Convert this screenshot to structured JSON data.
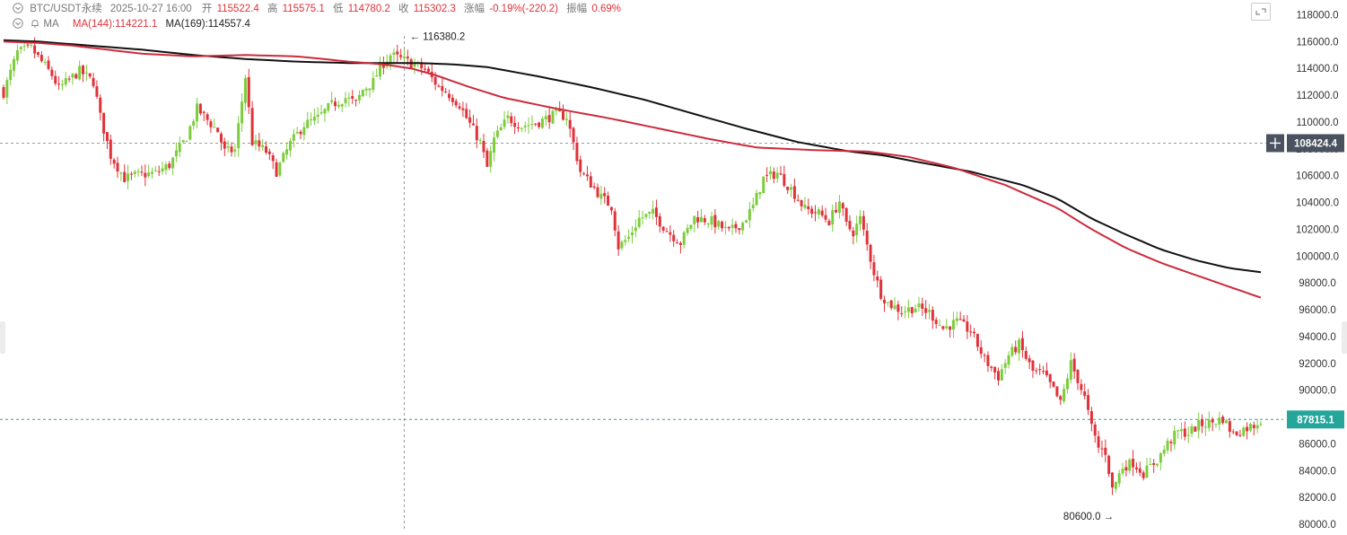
{
  "header": {
    "symbol": "BTC/USDT永续",
    "datetime": "2025-10-27 16:00",
    "open_label": "开",
    "open": "115522.4",
    "high_label": "高",
    "high": "115575.1",
    "low_label": "低",
    "low": "114780.2",
    "close_label": "收",
    "close": "115302.3",
    "change_label": "涨幅",
    "change": "-0.19%(-220.2)",
    "amplitude_label": "振幅",
    "amplitude": "0.69%"
  },
  "indicator": {
    "name": "MA",
    "ma144": "MA(144):114221.1",
    "ma169": "MA(169):114557.4"
  },
  "colors": {
    "up": "#7ccd3c",
    "down": "#e0323a",
    "ma144": "#cc2b3b",
    "ma169": "#111111",
    "last_price_bg": "#26a69a",
    "crosshair_price_bg": "#4a5260"
  },
  "chart_data": {
    "type": "candlestick",
    "y_range": [
      79600,
      118700
    ],
    "y_ticks": [
      80000,
      82000,
      84000,
      86000,
      88000,
      90000,
      92000,
      94000,
      96000,
      98000,
      100000,
      102000,
      104000,
      106000,
      108000,
      110000,
      112000,
      114000,
      116000,
      118000
    ],
    "y_tick_labels": [
      "80000.0",
      "82000.0",
      "84000.0",
      "86000.0",
      "88000.0",
      "90000.0",
      "92000.0",
      "94000.0",
      "96000.0",
      "98000.0",
      "100000.0",
      "102000.0",
      "104000.0",
      "106000.0",
      "108000.0",
      "110000.0",
      "112000.0",
      "114000.0",
      "116000.0",
      "118000.0"
    ],
    "close_path": [
      [
        0,
        112200
      ],
      [
        4,
        115200
      ],
      [
        8,
        115500
      ],
      [
        14,
        113500
      ],
      [
        16,
        112500
      ],
      [
        22,
        113800
      ],
      [
        26,
        113000
      ],
      [
        28,
        110400
      ],
      [
        31,
        107500
      ],
      [
        35,
        105800
      ],
      [
        38,
        106000
      ],
      [
        44,
        106200
      ],
      [
        48,
        106800
      ],
      [
        53,
        108900
      ],
      [
        56,
        111000
      ],
      [
        62,
        109300
      ],
      [
        64,
        107800
      ],
      [
        67,
        107900
      ],
      [
        70,
        113400
      ],
      [
        72,
        108500
      ],
      [
        76,
        107800
      ],
      [
        79,
        106300
      ],
      [
        83,
        108400
      ],
      [
        87,
        109800
      ],
      [
        91,
        110300
      ],
      [
        95,
        111300
      ],
      [
        99,
        111800
      ],
      [
        102,
        111400
      ],
      [
        104,
        112400
      ],
      [
        107,
        113000
      ],
      [
        109,
        114100
      ],
      [
        112,
        115000
      ],
      [
        115,
        114700
      ],
      [
        119,
        114300
      ],
      [
        122,
        113900
      ],
      [
        126,
        112600
      ],
      [
        128,
        112300
      ],
      [
        132,
        111300
      ],
      [
        134,
        110300
      ],
      [
        138,
        108500
      ],
      [
        140,
        106600
      ],
      [
        142,
        108700
      ],
      [
        146,
        110300
      ],
      [
        150,
        109700
      ],
      [
        155,
        110000
      ],
      [
        160,
        110600
      ],
      [
        163,
        110400
      ],
      [
        165,
        108400
      ],
      [
        167,
        106300
      ],
      [
        170,
        105400
      ],
      [
        173,
        104400
      ],
      [
        176,
        103700
      ],
      [
        178,
        100700
      ],
      [
        181,
        101400
      ],
      [
        184,
        102800
      ],
      [
        188,
        103200
      ],
      [
        192,
        101900
      ],
      [
        196,
        101000
      ],
      [
        200,
        102900
      ],
      [
        205,
        102600
      ],
      [
        210,
        101800
      ],
      [
        214,
        102500
      ],
      [
        217,
        103700
      ],
      [
        220,
        105800
      ],
      [
        224,
        106200
      ],
      [
        228,
        105000
      ],
      [
        232,
        103500
      ],
      [
        236,
        103200
      ],
      [
        239,
        102600
      ],
      [
        242,
        104100
      ],
      [
        244,
        102300
      ],
      [
        246,
        101800
      ],
      [
        248,
        102800
      ],
      [
        250,
        100800
      ],
      [
        252,
        98800
      ],
      [
        254,
        97200
      ],
      [
        256,
        96500
      ],
      [
        260,
        95900
      ],
      [
        264,
        96200
      ],
      [
        268,
        95800
      ],
      [
        272,
        94600
      ],
      [
        276,
        95100
      ],
      [
        280,
        94400
      ],
      [
        284,
        92300
      ],
      [
        288,
        91000
      ],
      [
        291,
        92600
      ],
      [
        294,
        93400
      ],
      [
        298,
        91400
      ],
      [
        301,
        91200
      ],
      [
        304,
        90000
      ],
      [
        306,
        89000
      ],
      [
        309,
        92000
      ],
      [
        311,
        90800
      ],
      [
        313,
        89400
      ],
      [
        315,
        87200
      ],
      [
        317,
        85700
      ],
      [
        319,
        85400
      ],
      [
        321,
        82600
      ],
      [
        324,
        84300
      ],
      [
        327,
        84600
      ],
      [
        330,
        83800
      ],
      [
        334,
        84800
      ],
      [
        337,
        86000
      ],
      [
        340,
        86900
      ],
      [
        343,
        86800
      ],
      [
        346,
        87400
      ],
      [
        350,
        87600
      ],
      [
        353,
        87900
      ],
      [
        356,
        86700
      ],
      [
        359,
        87100
      ],
      [
        362,
        87400
      ],
      [
        364,
        87815
      ]
    ],
    "candle_count": 365,
    "ma144_path": [
      [
        0,
        116000
      ],
      [
        10,
        115900
      ],
      [
        20,
        115700
      ],
      [
        30,
        115400
      ],
      [
        40,
        115100
      ],
      [
        55,
        114900
      ],
      [
        70,
        115000
      ],
      [
        85,
        114900
      ],
      [
        100,
        114500
      ],
      [
        110,
        114300
      ],
      [
        118,
        114000
      ],
      [
        125,
        113500
      ],
      [
        135,
        112600
      ],
      [
        145,
        111800
      ],
      [
        160,
        111000
      ],
      [
        175,
        110300
      ],
      [
        190,
        109500
      ],
      [
        205,
        108700
      ],
      [
        218,
        108100
      ],
      [
        235,
        107900
      ],
      [
        250,
        107800
      ],
      [
        262,
        107400
      ],
      [
        275,
        106600
      ],
      [
        290,
        105300
      ],
      [
        305,
        103600
      ],
      [
        315,
        102000
      ],
      [
        325,
        100600
      ],
      [
        335,
        99500
      ],
      [
        345,
        98600
      ],
      [
        355,
        97700
      ],
      [
        364,
        96900
      ]
    ],
    "ma169_path": [
      [
        0,
        116100
      ],
      [
        10,
        116000
      ],
      [
        20,
        115800
      ],
      [
        30,
        115600
      ],
      [
        40,
        115400
      ],
      [
        55,
        115000
      ],
      [
        70,
        114700
      ],
      [
        85,
        114500
      ],
      [
        100,
        114400
      ],
      [
        110,
        114400
      ],
      [
        120,
        114400
      ],
      [
        130,
        114300
      ],
      [
        140,
        114100
      ],
      [
        155,
        113400
      ],
      [
        170,
        112600
      ],
      [
        185,
        111700
      ],
      [
        200,
        110600
      ],
      [
        215,
        109500
      ],
      [
        230,
        108500
      ],
      [
        245,
        107800
      ],
      [
        255,
        107500
      ],
      [
        265,
        107000
      ],
      [
        280,
        106300
      ],
      [
        295,
        105300
      ],
      [
        305,
        104300
      ],
      [
        315,
        102800
      ],
      [
        325,
        101600
      ],
      [
        335,
        100500
      ],
      [
        345,
        99700
      ],
      [
        355,
        99100
      ],
      [
        364,
        98800
      ]
    ],
    "annotations": [
      {
        "text": "← 116380.2",
        "index": 116,
        "price": 116380.2,
        "side": "right"
      },
      {
        "text": "80600.0 →",
        "index": 323,
        "price": 80600,
        "side": "left"
      }
    ],
    "crosshair": {
      "index": 116,
      "price": 108424.4,
      "label": "108424.4"
    },
    "last_price": {
      "price": 87815.1,
      "label": "87815.1"
    }
  }
}
